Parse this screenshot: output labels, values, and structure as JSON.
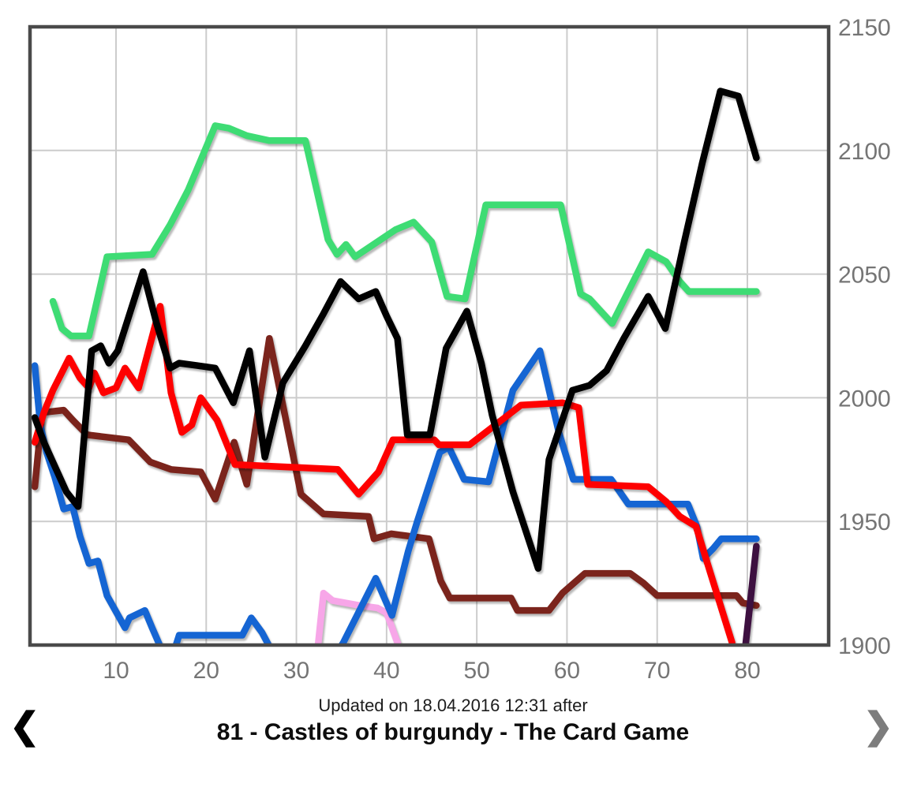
{
  "footer": {
    "updated_text": "Updated on 18.04.2016 12:31 after",
    "game_title": "81 - Castles of burgundy - The Card Game",
    "prev_arrow": "❮",
    "next_arrow": "❯"
  },
  "colors": {
    "background": "#ffffff",
    "plot_border": "#4a4a4a",
    "gridline": "#cccccc",
    "tick_label": "#757575",
    "prev_arrow": "#000000",
    "next_arrow": "#7d7d7d"
  },
  "chart_data": {
    "type": "line",
    "title": "81 - Castles of burgundy - The Card Game",
    "subtitle": "Updated on 18.04.2016 12:31 after",
    "xlabel": "",
    "ylabel": "",
    "legend_position": "none",
    "grid": true,
    "x_ticks": [
      10,
      20,
      30,
      40,
      50,
      60,
      70,
      80
    ],
    "y_ticks": [
      2150,
      2100,
      2050,
      2000,
      1950,
      1900
    ],
    "xlim": [
      0.6,
      88.8
    ],
    "ylim": [
      1900,
      2150
    ],
    "series": [
      {
        "name": "pink",
        "color": "#f7a6e8",
        "points": [
          [
            32.4,
            1900
          ],
          [
            33,
            1921
          ],
          [
            34,
            1918
          ],
          [
            37,
            1916
          ],
          [
            39,
            1915
          ],
          [
            40,
            1913
          ],
          [
            41.3,
            1900
          ]
        ]
      },
      {
        "name": "dark-red",
        "color": "#7b241c",
        "points": [
          [
            1,
            1964
          ],
          [
            1.8,
            1994
          ],
          [
            4.2,
            1995
          ],
          [
            5.2,
            1991
          ],
          [
            6.8,
            1985
          ],
          [
            11.4,
            1983
          ],
          [
            13.8,
            1974
          ],
          [
            16.1,
            1971
          ],
          [
            19.4,
            1970
          ],
          [
            21,
            1959
          ],
          [
            23.1,
            1982
          ],
          [
            24.5,
            1965
          ],
          [
            27,
            2024
          ],
          [
            30.5,
            1961
          ],
          [
            33,
            1953
          ],
          [
            38,
            1952
          ],
          [
            38.6,
            1943
          ],
          [
            40.5,
            1945
          ],
          [
            44.7,
            1943
          ],
          [
            46,
            1926
          ],
          [
            47,
            1919
          ],
          [
            53.8,
            1919
          ],
          [
            54.5,
            1914
          ],
          [
            58,
            1914
          ],
          [
            59.5,
            1921
          ],
          [
            62,
            1929
          ],
          [
            67,
            1929
          ],
          [
            68.5,
            1925
          ],
          [
            70,
            1920
          ],
          [
            78.8,
            1920
          ],
          [
            79.5,
            1917
          ],
          [
            81,
            1916
          ]
        ]
      },
      {
        "name": "blue",
        "color": "#1565d3",
        "points": [
          [
            1,
            2013
          ],
          [
            1.6,
            1989
          ],
          [
            2.3,
            1978
          ],
          [
            3.2,
            1968
          ],
          [
            4.2,
            1955
          ],
          [
            5.2,
            1956
          ],
          [
            6,
            1944
          ],
          [
            7,
            1933
          ],
          [
            8,
            1934
          ],
          [
            9,
            1920
          ],
          [
            11,
            1907
          ],
          [
            11.5,
            1911
          ],
          [
            13.2,
            1914
          ],
          [
            14,
            1907
          ],
          [
            15.2,
            1897
          ],
          [
            16.3,
            1896
          ],
          [
            17,
            1904
          ],
          [
            24,
            1904
          ],
          [
            25,
            1911
          ],
          [
            26.2,
            1905
          ],
          [
            27.5,
            1896
          ],
          [
            34,
            1894
          ],
          [
            35.2,
            1901
          ],
          [
            38.8,
            1927
          ],
          [
            40.6,
            1912
          ],
          [
            42.4,
            1938
          ],
          [
            43.4,
            1950
          ],
          [
            45.9,
            1978
          ],
          [
            46.9,
            1980
          ],
          [
            48.6,
            1967
          ],
          [
            51.3,
            1966
          ],
          [
            54,
            2003
          ],
          [
            57,
            2019
          ],
          [
            59.1,
            1986
          ],
          [
            60.7,
            1967
          ],
          [
            64.9,
            1967
          ],
          [
            66.8,
            1957
          ],
          [
            73.4,
            1957
          ],
          [
            74.4,
            1948
          ],
          [
            75.1,
            1935
          ],
          [
            76.2,
            1939
          ],
          [
            77.1,
            1943
          ],
          [
            81,
            1943
          ]
        ]
      },
      {
        "name": "red",
        "color": "#fe0000",
        "points": [
          [
            1,
            1982
          ],
          [
            2,
            1994
          ],
          [
            3,
            2003
          ],
          [
            4.8,
            2016
          ],
          [
            6,
            2008
          ],
          [
            7,
            2004
          ],
          [
            7.6,
            2010
          ],
          [
            8.6,
            2002
          ],
          [
            10,
            2004
          ],
          [
            11,
            2012
          ],
          [
            12.5,
            2004
          ],
          [
            14.9,
            2037
          ],
          [
            16.1,
            2002
          ],
          [
            17.3,
            1986
          ],
          [
            18.4,
            1989
          ],
          [
            19.4,
            2000
          ],
          [
            21.2,
            1991
          ],
          [
            23.2,
            1973
          ],
          [
            34.6,
            1971
          ],
          [
            36.9,
            1961
          ],
          [
            39.1,
            1970
          ],
          [
            40.7,
            1983
          ],
          [
            45.3,
            1983
          ],
          [
            45.8,
            1981
          ],
          [
            49.2,
            1981
          ],
          [
            51.7,
            1988
          ],
          [
            54.9,
            1997
          ],
          [
            59.5,
            1998
          ],
          [
            61.3,
            1996
          ],
          [
            62.3,
            1965
          ],
          [
            69,
            1964
          ],
          [
            71,
            1958
          ],
          [
            72.5,
            1952
          ],
          [
            74.3,
            1948
          ],
          [
            76,
            1928
          ],
          [
            78.3,
            1901
          ]
        ]
      },
      {
        "name": "green",
        "color": "#3edc74",
        "points": [
          [
            3,
            2039
          ],
          [
            4,
            2028
          ],
          [
            5,
            2025
          ],
          [
            7,
            2025
          ],
          [
            9,
            2057
          ],
          [
            14,
            2058
          ],
          [
            16,
            2070
          ],
          [
            18,
            2084
          ],
          [
            21,
            2110
          ],
          [
            22.5,
            2109
          ],
          [
            24.5,
            2106
          ],
          [
            27,
            2104
          ],
          [
            31,
            2104
          ],
          [
            33.5,
            2064
          ],
          [
            34.5,
            2058
          ],
          [
            35.5,
            2062
          ],
          [
            36.5,
            2057
          ],
          [
            41,
            2068
          ],
          [
            43,
            2071
          ],
          [
            45,
            2063
          ],
          [
            46.7,
            2041
          ],
          [
            48.7,
            2040
          ],
          [
            51,
            2078
          ],
          [
            59.3,
            2078
          ],
          [
            61.5,
            2042
          ],
          [
            62.5,
            2040
          ],
          [
            65,
            2030
          ],
          [
            69,
            2059
          ],
          [
            71,
            2055
          ],
          [
            72.5,
            2047
          ],
          [
            73.5,
            2043
          ],
          [
            81,
            2043
          ]
        ]
      },
      {
        "name": "black",
        "color": "#000000",
        "points": [
          [
            1,
            1992
          ],
          [
            2,
            1982
          ],
          [
            3,
            1974
          ],
          [
            4.5,
            1962
          ],
          [
            5.8,
            1956
          ],
          [
            7.3,
            2019
          ],
          [
            8.3,
            2021
          ],
          [
            9.2,
            2014
          ],
          [
            10.2,
            2019
          ],
          [
            13,
            2051
          ],
          [
            14.5,
            2030
          ],
          [
            16,
            2012
          ],
          [
            17,
            2014
          ],
          [
            19,
            2013
          ],
          [
            21,
            2012
          ],
          [
            23,
            1998
          ],
          [
            24.8,
            2019
          ],
          [
            26.5,
            1976
          ],
          [
            28.5,
            2006
          ],
          [
            31,
            2021
          ],
          [
            33,
            2034
          ],
          [
            34.9,
            2047
          ],
          [
            36.9,
            2040
          ],
          [
            38.8,
            2043
          ],
          [
            40,
            2033
          ],
          [
            41.2,
            2024
          ],
          [
            42.3,
            1985
          ],
          [
            44.8,
            1985
          ],
          [
            46.6,
            2020
          ],
          [
            48.9,
            2035
          ],
          [
            50.5,
            2014
          ],
          [
            51.7,
            1993
          ],
          [
            54,
            1962
          ],
          [
            56.8,
            1931
          ],
          [
            58,
            1975
          ],
          [
            60.6,
            2003
          ],
          [
            62.5,
            2005
          ],
          [
            64.4,
            2011
          ],
          [
            66.3,
            2024
          ],
          [
            69,
            2041
          ],
          [
            70.9,
            2028
          ],
          [
            73,
            2063
          ],
          [
            75,
            2095
          ],
          [
            77,
            2124
          ],
          [
            79,
            2122
          ],
          [
            81,
            2097
          ]
        ]
      },
      {
        "name": "purple",
        "color": "#3d1040",
        "points": [
          [
            79.8,
            1900
          ],
          [
            81,
            1940
          ]
        ]
      }
    ]
  }
}
